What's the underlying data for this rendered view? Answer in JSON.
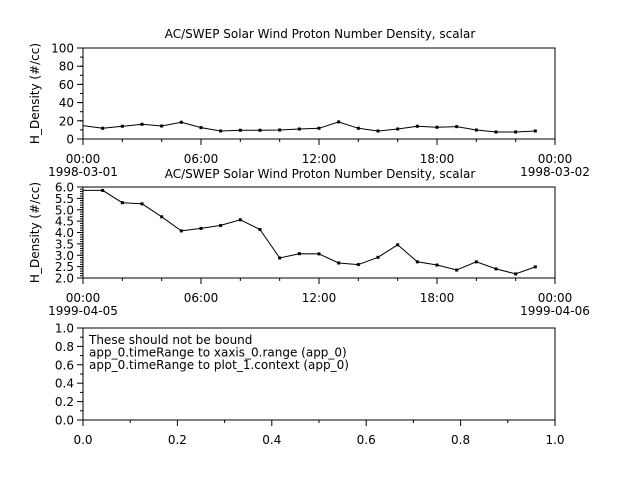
{
  "chart_data": [
    {
      "type": "line",
      "title": "AC/SWEP  Solar Wind Proton Number Density, scalar",
      "ylabel": "H_Density (#/cc)",
      "xlabel": "",
      "xlim": [
        "1998-03-01 00:00",
        "1998-03-02 00:00"
      ],
      "ylim": [
        0,
        100
      ],
      "yticks": [
        "0",
        "20",
        "40",
        "60",
        "80",
        "100"
      ],
      "yticks_values": [
        0,
        20,
        40,
        60,
        80,
        100
      ],
      "yminor": 10,
      "xticks": [
        "00:00",
        "06:00",
        "12:00",
        "18:00",
        "00:00"
      ],
      "xticks_dates": [
        "1998-03-01",
        "",
        "",
        "",
        "1998-03-02"
      ],
      "x_hours": [
        0,
        1,
        2,
        3,
        4,
        5,
        6,
        7,
        8,
        9,
        10,
        11,
        12,
        13,
        14,
        15,
        16,
        17,
        18,
        19,
        20,
        21,
        22,
        23
      ],
      "values": [
        14.7,
        11.8,
        14,
        16.2,
        14.3,
        18.4,
        12.5,
        8.8,
        9.6,
        9.6,
        9.9,
        11,
        11.8,
        18.8,
        11.8,
        8.8,
        11,
        14,
        12.9,
        13.6,
        9.9,
        7.7,
        7.7,
        8.8
      ],
      "color": "#000000",
      "grid": false
    },
    {
      "type": "line",
      "title": "AC/SWEP  Solar Wind Proton Number Density, scalar",
      "ylabel": "H_Density (#/cc)",
      "xlabel": "",
      "xlim": [
        "1999-04-05 00:00",
        "1999-04-06 00:00"
      ],
      "ylim": [
        2.0,
        6.0
      ],
      "yticks": [
        "2.0",
        "2.5",
        "3.0",
        "3.5",
        "4.0",
        "4.5",
        "5.0",
        "5.5",
        "6.0"
      ],
      "yticks_values": [
        2.0,
        2.5,
        3.0,
        3.5,
        4.0,
        4.5,
        5.0,
        5.5,
        6.0
      ],
      "yminor": 0.1,
      "xticks": [
        "00:00",
        "06:00",
        "12:00",
        "18:00",
        "00:00"
      ],
      "xticks_dates": [
        "1999-04-05",
        "",
        "",
        "",
        "1999-04-06"
      ],
      "x_hours": [
        0,
        1,
        2,
        3,
        4,
        5,
        6,
        7,
        8,
        9,
        10,
        11,
        12,
        13,
        14,
        15,
        16,
        17,
        18,
        19,
        20,
        21,
        22,
        23
      ],
      "values": [
        5.85,
        5.85,
        5.31,
        5.26,
        4.69,
        4.07,
        4.18,
        4.31,
        4.56,
        4.13,
        2.88,
        3.07,
        3.06,
        2.66,
        2.59,
        2.91,
        3.46,
        2.71,
        2.57,
        2.35,
        2.71,
        2.4,
        2.18,
        2.49
      ],
      "color": "#000000",
      "grid": false
    },
    {
      "type": "line",
      "title": "",
      "xlim": [
        0.0,
        1.0
      ],
      "ylim": [
        0.0,
        1.0
      ],
      "xticks": [
        "0.0",
        "0.2",
        "0.4",
        "0.6",
        "0.8",
        "1.0"
      ],
      "yticks": [
        "0.0",
        "0.2",
        "0.4",
        "0.6",
        "0.8",
        "1.0"
      ],
      "annotations": [
        "These should not be bound",
        "app_0.timeRange to xaxis_0.range  (app_0)",
        "app_0.timeRange to plot_1.context  (app_0)"
      ],
      "grid": false
    }
  ]
}
